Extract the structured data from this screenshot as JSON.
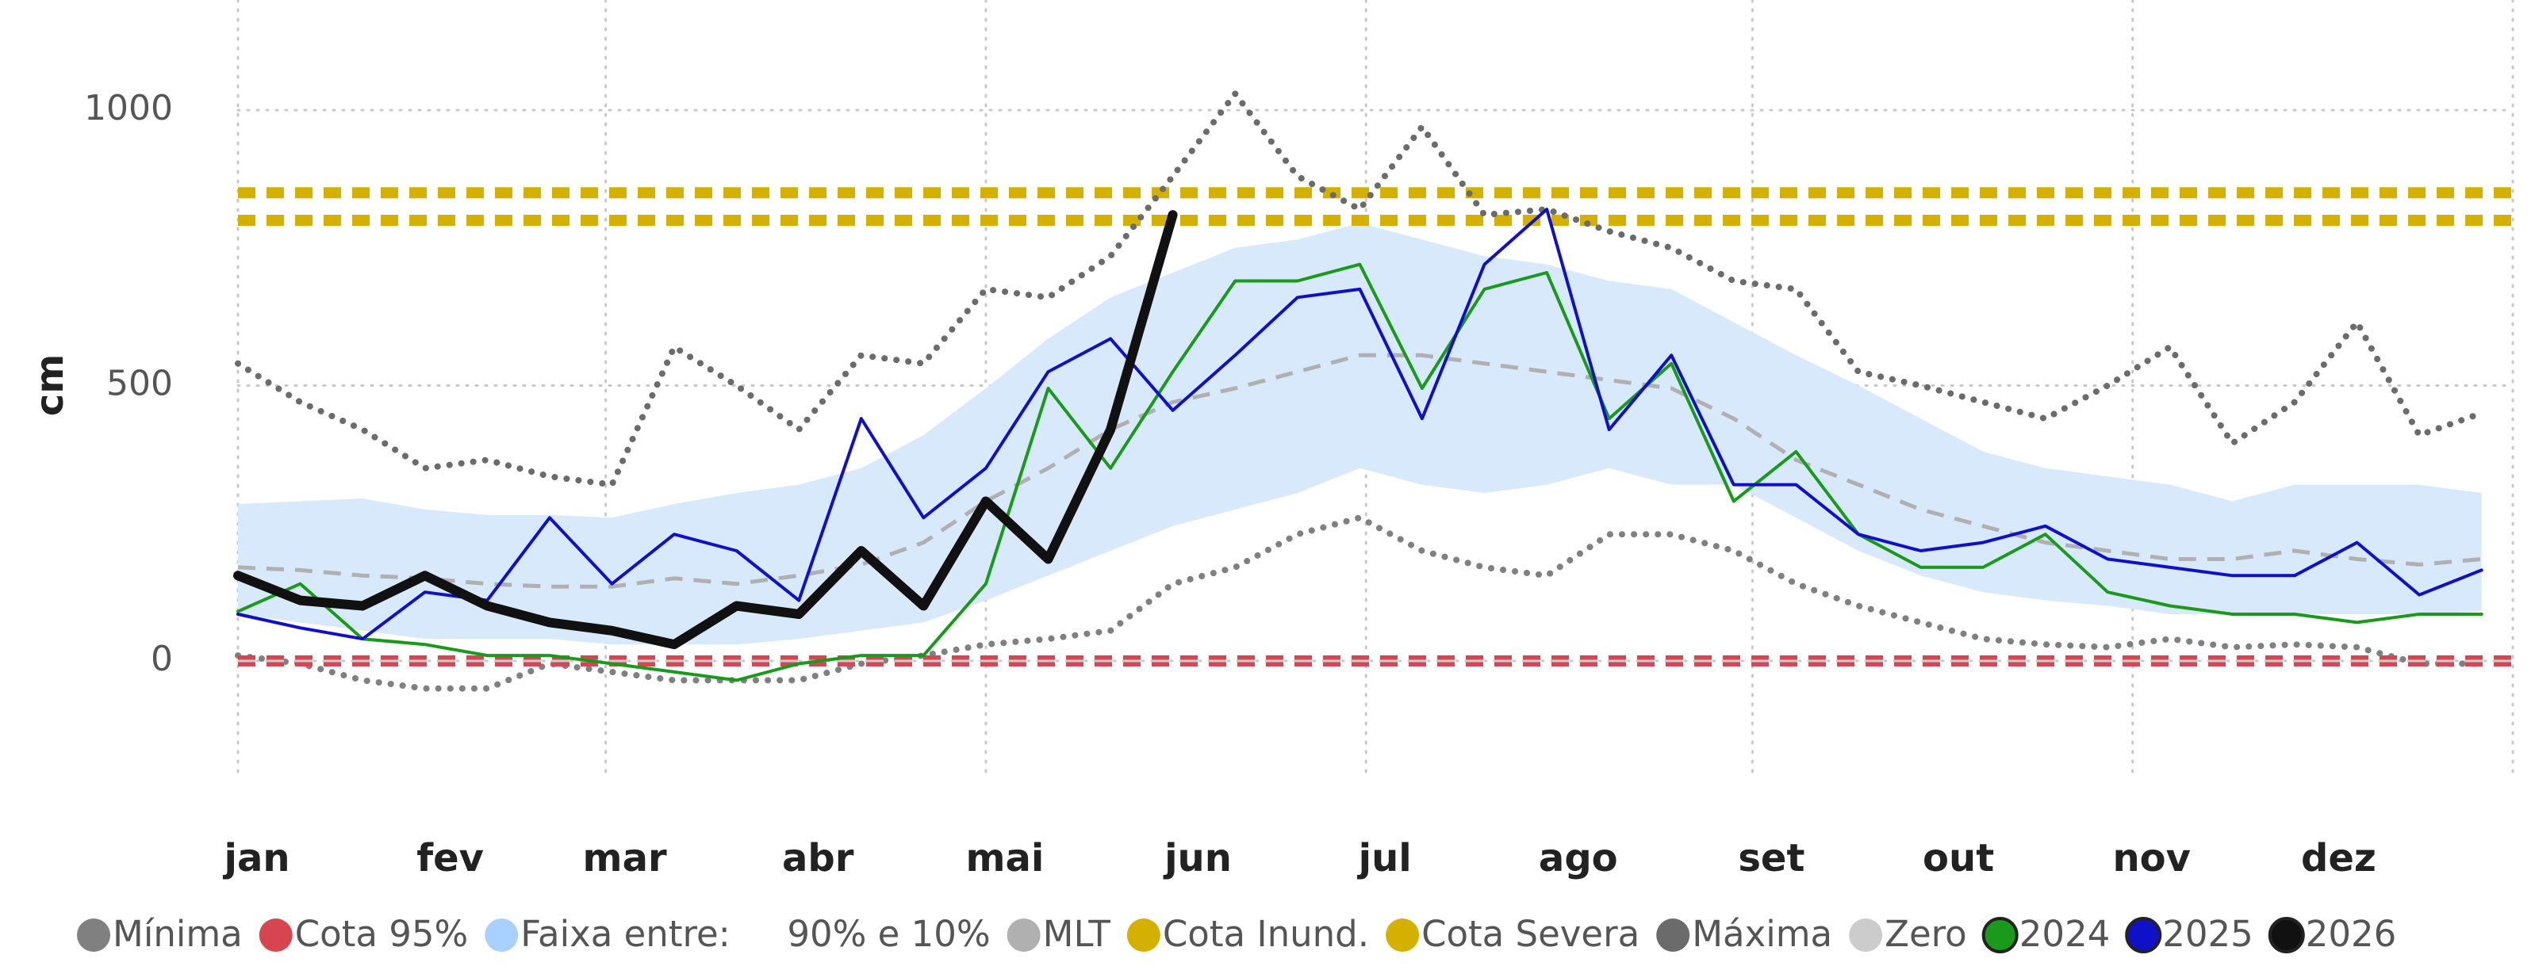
{
  "chart_data": {
    "type": "line",
    "y_label": "cm",
    "xlim": [
      0,
      365
    ],
    "ylim": [
      -210,
      1200
    ],
    "yticks": [
      0,
      500,
      1000
    ],
    "xticks": [
      {
        "value": 0,
        "label": "jan"
      },
      {
        "value": 31,
        "label": "fev"
      },
      {
        "value": 59,
        "label": "mar"
      },
      {
        "value": 90,
        "label": "abr"
      },
      {
        "value": 120,
        "label": "mai"
      },
      {
        "value": 151,
        "label": "jun"
      },
      {
        "value": 181,
        "label": "jul"
      },
      {
        "value": 212,
        "label": "ago"
      },
      {
        "value": 243,
        "label": "set"
      },
      {
        "value": 273,
        "label": "out"
      },
      {
        "value": 304,
        "label": "nov"
      },
      {
        "value": 334,
        "label": "dez"
      }
    ],
    "grid": true,
    "legend": "bottom",
    "x": [
      0,
      10,
      20,
      30,
      40,
      50,
      60,
      70,
      80,
      90,
      100,
      110,
      120,
      130,
      140,
      150,
      160,
      170,
      180,
      190,
      200,
      210,
      220,
      230,
      240,
      250,
      260,
      270,
      280,
      290,
      300,
      310,
      320,
      330,
      340,
      350,
      360
    ],
    "series": [
      {
        "name": "Mínima",
        "kind": "line",
        "style": "dotted",
        "color": "#808080",
        "values": [
          10,
          -5,
          -35,
          -50,
          -50,
          -5,
          -20,
          -35,
          -35,
          -35,
          -5,
          10,
          30,
          40,
          55,
          140,
          170,
          230,
          260,
          200,
          170,
          155,
          230,
          230,
          200,
          140,
          100,
          70,
          40,
          30,
          25,
          40,
          25,
          30,
          25,
          -5,
          -5
        ]
      },
      {
        "name": "Cota 95%",
        "kind": "hline",
        "style": "dashed",
        "color": "#d64550",
        "value": 0
      },
      {
        "name": "Faixa entre:     90% e 10%",
        "kind": "band",
        "color": "#a8d1ff",
        "fill": "#d7e9fb",
        "values": [
          285,
          290,
          295,
          275,
          265,
          265,
          260,
          285,
          305,
          320,
          350,
          410,
          495,
          585,
          660,
          705,
          750,
          765,
          795,
          765,
          735,
          720,
          690,
          675,
          615,
          555,
          500,
          440,
          380,
          350,
          335,
          320,
          290,
          320,
          320,
          320,
          305
        ],
        "lower": [
          85,
          70,
          55,
          40,
          40,
          40,
          30,
          30,
          30,
          40,
          55,
          70,
          110,
          155,
          200,
          245,
          275,
          305,
          350,
          320,
          305,
          320,
          350,
          320,
          320,
          260,
          200,
          155,
          125,
          110,
          100,
          85,
          85,
          85,
          85,
          85,
          90
        ]
      },
      {
        "name": "MLT",
        "kind": "line",
        "style": "dashed",
        "color": "#b0b0b0",
        "values": [
          170,
          165,
          155,
          150,
          140,
          135,
          135,
          150,
          140,
          155,
          175,
          215,
          290,
          350,
          420,
          470,
          495,
          525,
          555,
          555,
          540,
          525,
          510,
          495,
          440,
          365,
          320,
          275,
          245,
          215,
          200,
          185,
          185,
          200,
          185,
          175,
          185
        ]
      },
      {
        "name": "Cota Inund.",
        "kind": "hline",
        "style": "dashed",
        "color": "#d4b000",
        "value": 800
      },
      {
        "name": "Cota Severa",
        "kind": "hline",
        "style": "dashed",
        "color": "#d4b000",
        "value": 850
      },
      {
        "name": "Máxima",
        "kind": "line",
        "style": "dotted",
        "color": "#6b6b6b",
        "values": [
          540,
          470,
          420,
          350,
          365,
          335,
          320,
          570,
          500,
          420,
          555,
          540,
          675,
          660,
          735,
          880,
          1030,
          880,
          820,
          970,
          810,
          820,
          780,
          750,
          690,
          675,
          525,
          500,
          470,
          440,
          500,
          570,
          395,
          470,
          615,
          410,
          450
        ]
      },
      {
        "name": "Zero",
        "kind": "hline",
        "style": "thin",
        "color": "#cccccc",
        "value": 0
      },
      {
        "name": "2024",
        "kind": "line",
        "style": "solid",
        "color": "#1a9a1a",
        "values": [
          90,
          140,
          40,
          30,
          10,
          10,
          -5,
          -20,
          -35,
          -5,
          10,
          10,
          140,
          495,
          350,
          525,
          690,
          690,
          720,
          495,
          675,
          705,
          440,
          540,
          290,
          380,
          230,
          170,
          170,
          230,
          125,
          100,
          85,
          85,
          70,
          85,
          85
        ]
      },
      {
        "name": "2025",
        "kind": "line",
        "style": "solid",
        "color": "#1010c8",
        "values": [
          85,
          60,
          40,
          125,
          110,
          260,
          140,
          230,
          200,
          110,
          440,
          260,
          350,
          525,
          585,
          455,
          555,
          660,
          675,
          440,
          720,
          820,
          420,
          555,
          320,
          320,
          230,
          200,
          215,
          245,
          185,
          170,
          155,
          155,
          215,
          120,
          165
        ]
      },
      {
        "name": "2026",
        "kind": "line",
        "style": "thick",
        "color": "#111111",
        "values": [
          155,
          110,
          100,
          155,
          100,
          70,
          55,
          30,
          100,
          85,
          200,
          100,
          290,
          185,
          420,
          810,
          null,
          null,
          null,
          null,
          null,
          null,
          null,
          null,
          null,
          null,
          null,
          null,
          null,
          null,
          null,
          null,
          null,
          null,
          null,
          null,
          null
        ]
      }
    ]
  }
}
